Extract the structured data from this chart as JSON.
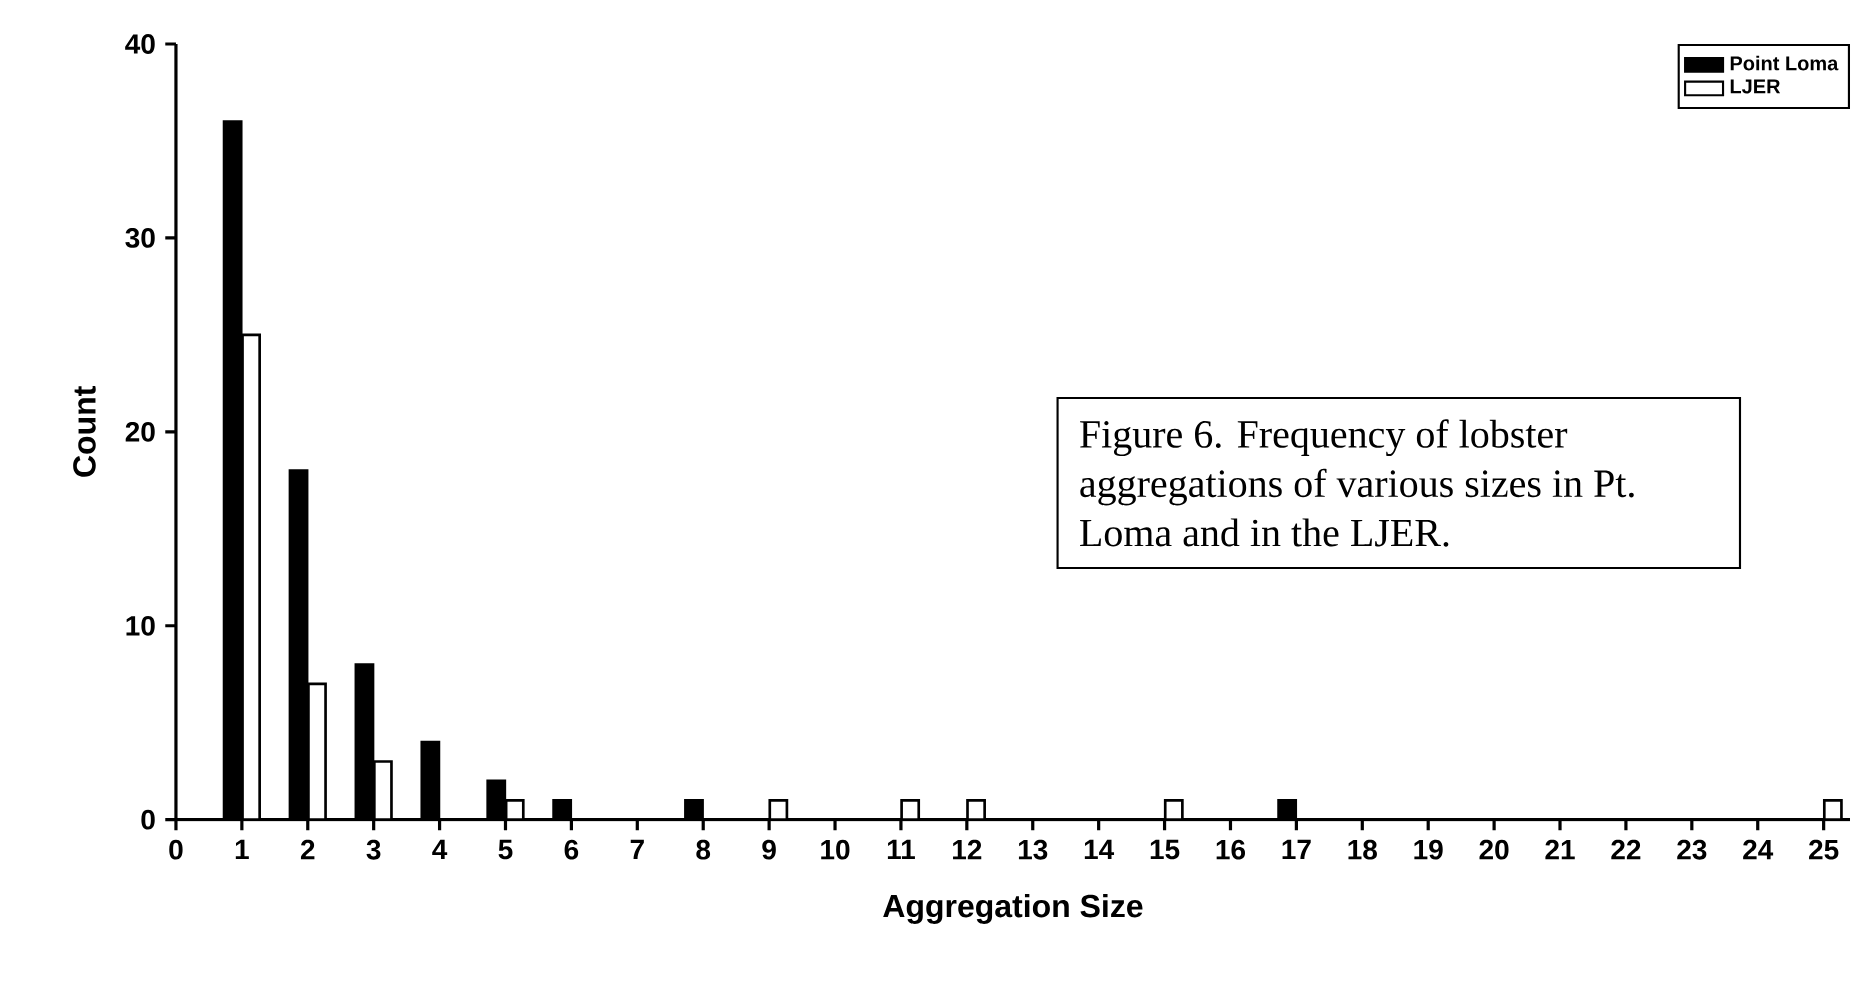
{
  "chart_data": {
    "type": "bar",
    "xlabel": "Aggregation Size",
    "ylabel": "Count",
    "categories": [
      "0",
      "1",
      "2",
      "3",
      "4",
      "5",
      "6",
      "7",
      "8",
      "9",
      "10",
      "11",
      "12",
      "13",
      "14",
      "15",
      "16",
      "17",
      "18",
      "19",
      "20",
      "21",
      "22",
      "23",
      "24",
      "25"
    ],
    "series": [
      {
        "name": "Point Loma",
        "color": "#000000",
        "values": [
          0,
          36,
          18,
          8,
          4,
          2,
          1,
          0,
          1,
          0,
          0,
          0,
          0,
          0,
          0,
          0,
          0,
          1,
          0,
          0,
          0,
          0,
          0,
          0,
          0,
          0
        ]
      },
      {
        "name": "LJER",
        "color": "#ffffff",
        "values": [
          0,
          25,
          7,
          3,
          0,
          1,
          0,
          0,
          0,
          1,
          0,
          1,
          1,
          0,
          0,
          1,
          0,
          0,
          0,
          0,
          0,
          0,
          0,
          0,
          0,
          1
        ]
      }
    ],
    "ylim": [
      0,
      40
    ],
    "yticks": [
      0,
      10,
      20,
      30,
      40
    ],
    "grid": false,
    "legend": "top right",
    "annotations": [
      "Figure 6.  Frequency of lobster aggregations of various sizes in Pt. Loma and in the LJER."
    ]
  }
}
